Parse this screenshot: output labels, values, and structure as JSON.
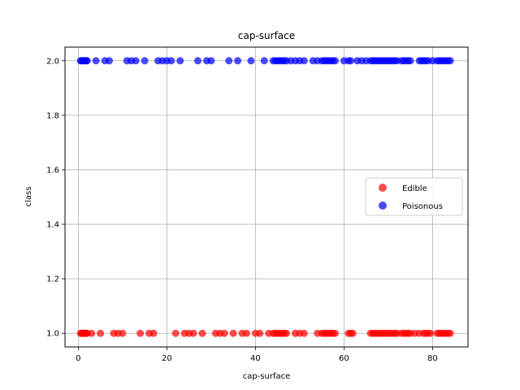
{
  "chart_data": {
    "type": "scatter",
    "title": "cap-surface",
    "xlabel": "cap-surface",
    "ylabel": "class",
    "xlim": [
      -3,
      88
    ],
    "ylim": [
      0.95,
      2.05
    ],
    "xticks": [
      0,
      20,
      40,
      60,
      80
    ],
    "yticks": [
      1.0,
      1.2,
      1.4,
      1.6,
      1.8,
      2.0
    ],
    "xtick_labels": [
      "0",
      "20",
      "40",
      "60",
      "80"
    ],
    "ytick_labels": [
      "1.0",
      "1.2",
      "1.4",
      "1.6",
      "1.8",
      "2.0"
    ],
    "grid": true,
    "legend_position": "center-right",
    "series": [
      {
        "name": "Edible",
        "color": "#ff0000",
        "y": 1.0,
        "x": [
          0.5,
          0.8,
          1,
          1.2,
          1.5,
          1.8,
          2,
          3,
          5,
          8,
          9,
          10,
          14,
          16,
          17,
          22,
          24,
          25,
          26,
          28,
          31,
          32,
          33,
          35,
          37,
          38,
          40,
          41,
          43,
          44,
          44.5,
          45,
          45.5,
          46,
          46.5,
          47,
          49,
          50,
          51,
          54,
          55,
          55.5,
          56,
          56.5,
          57,
          57.5,
          58,
          61,
          61.5,
          62,
          66,
          66.5,
          67,
          67.5,
          68,
          68.5,
          69,
          69.5,
          70,
          70.5,
          71,
          71.5,
          72,
          73,
          73.5,
          74,
          74.5,
          75,
          76,
          77,
          78,
          78.5,
          79,
          79.5,
          81,
          81.5,
          82,
          82.5,
          83,
          83.5,
          84
        ]
      },
      {
        "name": "Poisonous",
        "color": "#0000ff",
        "y": 2.0,
        "x": [
          0.5,
          0.8,
          1,
          1.2,
          1.5,
          1.8,
          2,
          4,
          6,
          7,
          11,
          12,
          13,
          15,
          18,
          19,
          20,
          21,
          23,
          27,
          29,
          30,
          34,
          36,
          39,
          42,
          44,
          44.5,
          45,
          45.5,
          46,
          46.5,
          47,
          48,
          49,
          50,
          51,
          53,
          54,
          55,
          55.5,
          56,
          56.5,
          57,
          57.5,
          58,
          60,
          61,
          61.5,
          63,
          64,
          65,
          66,
          66.5,
          67,
          67.5,
          68,
          68.5,
          69,
          69.5,
          70,
          70.5,
          71,
          71.5,
          72,
          73,
          73.5,
          74,
          74.5,
          75,
          77,
          77.5,
          78,
          78.5,
          79,
          80,
          81,
          81.5,
          82,
          82.5,
          83,
          83.5,
          84
        ]
      }
    ]
  }
}
